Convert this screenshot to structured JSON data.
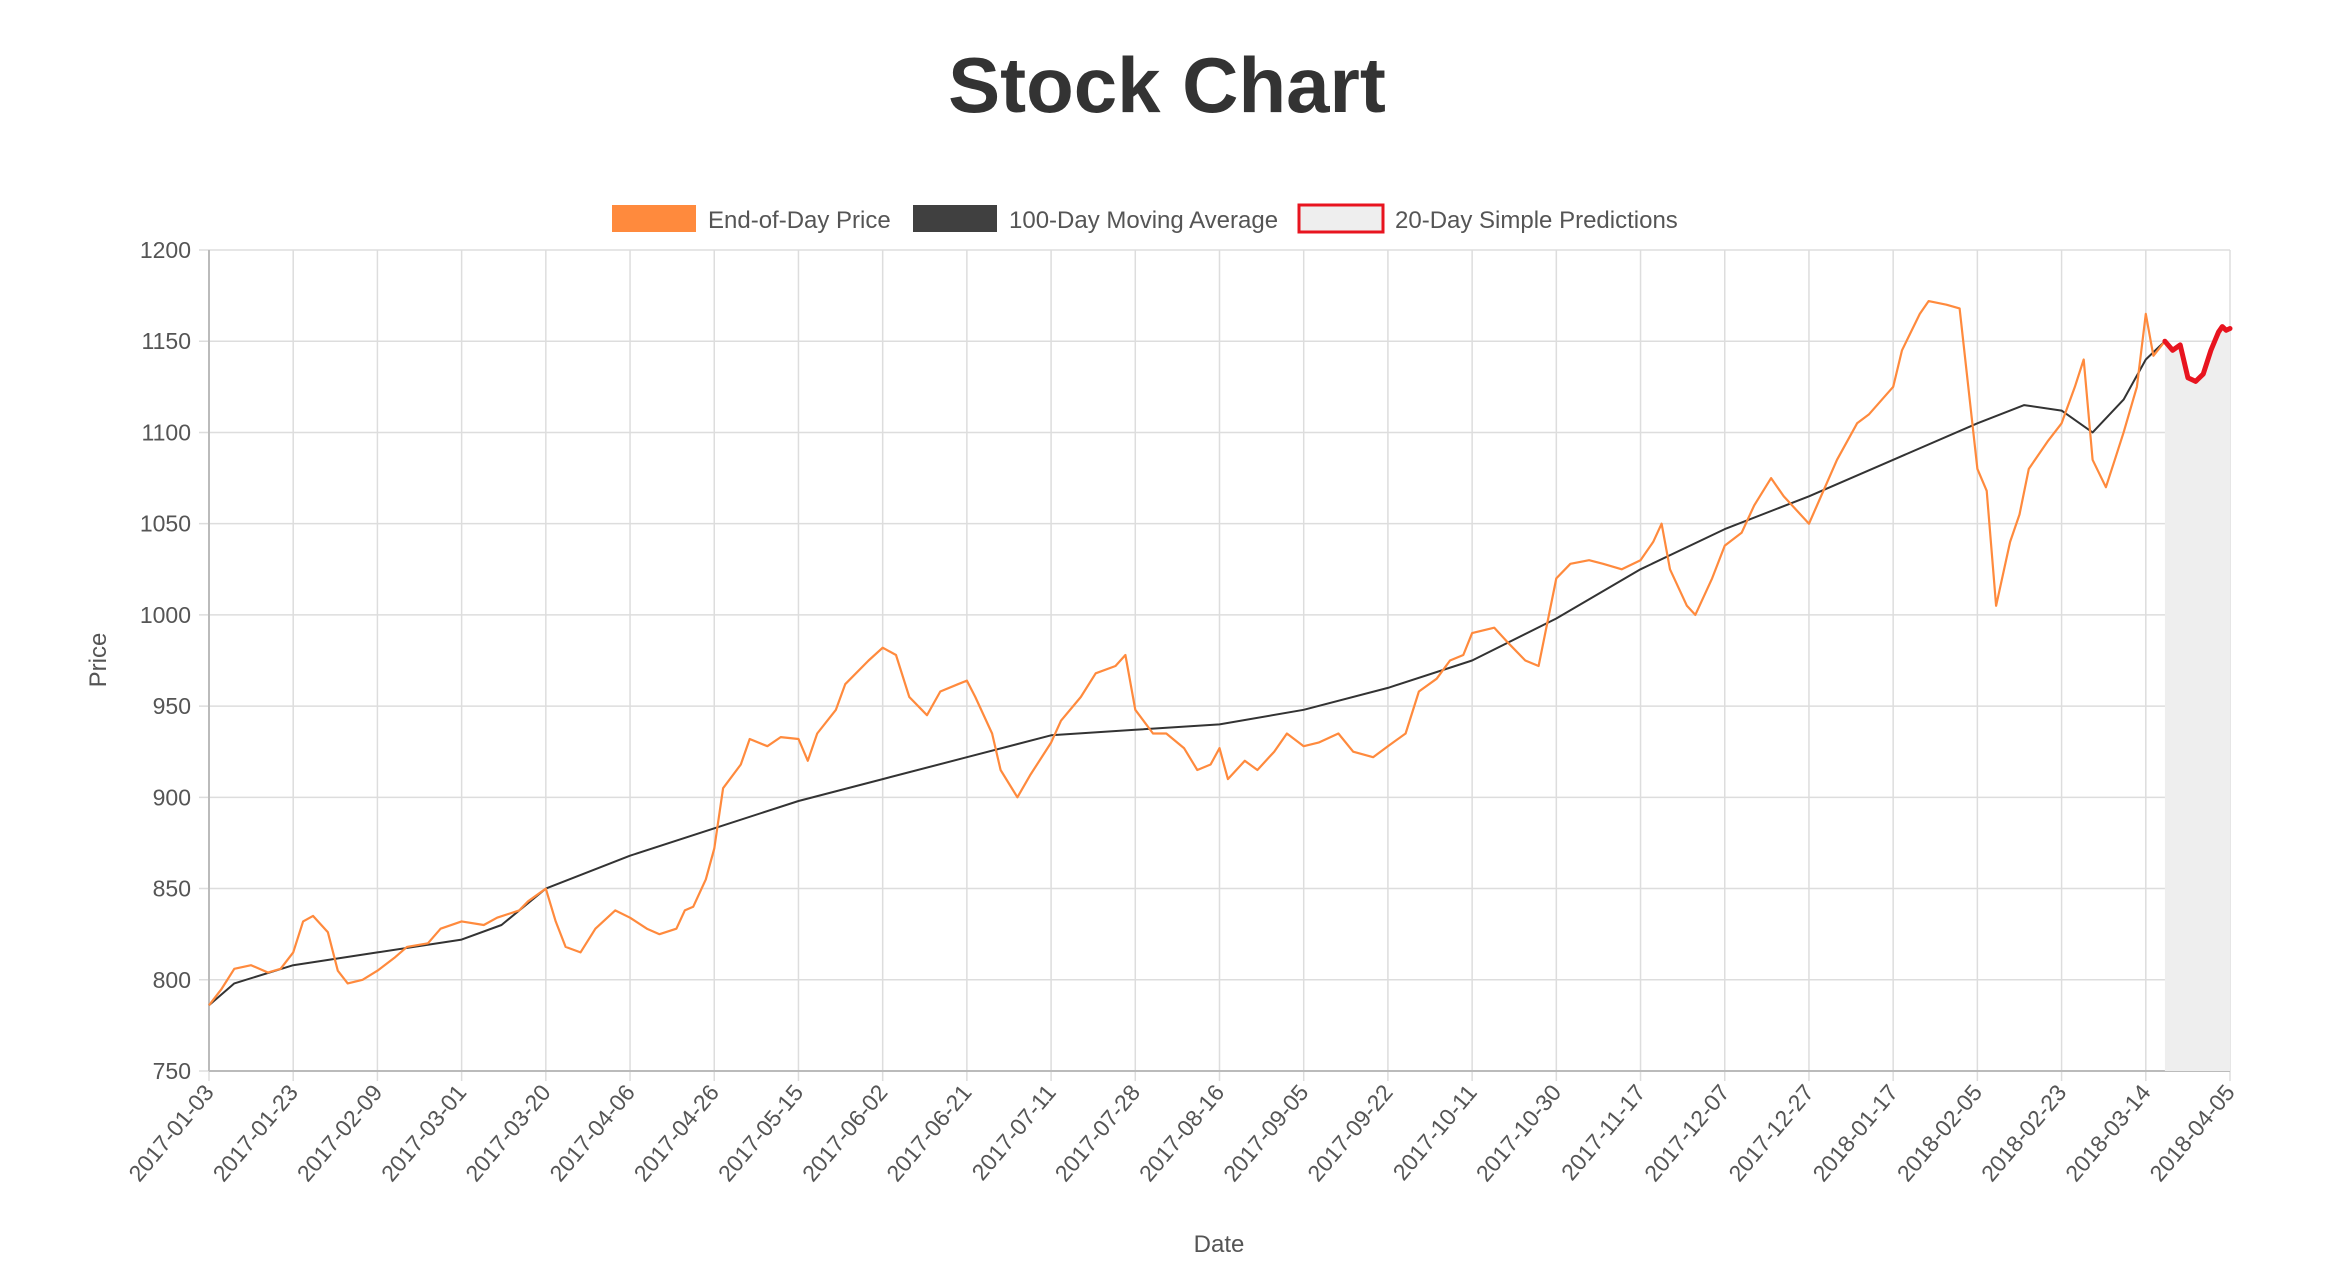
{
  "chart_data": {
    "type": "line",
    "title": "Stock Chart",
    "xlabel": "Date",
    "ylabel": "Price",
    "ylim": [
      750,
      1200
    ],
    "yticks": [
      750,
      800,
      850,
      900,
      950,
      1000,
      1050,
      1100,
      1150,
      1200
    ],
    "xticks": [
      "2017-01-03",
      "2017-01-23",
      "2017-02-09",
      "2017-03-01",
      "2017-03-20",
      "2017-04-06",
      "2017-04-26",
      "2017-05-15",
      "2017-06-02",
      "2017-06-21",
      "2017-07-11",
      "2017-07-28",
      "2017-08-16",
      "2017-09-05",
      "2017-09-22",
      "2017-10-11",
      "2017-10-30",
      "2017-11-17",
      "2017-12-07",
      "2017-12-27",
      "2018-01-17",
      "2018-02-05",
      "2018-02-23",
      "2018-03-14",
      "2018-04-05"
    ],
    "grid": true,
    "legend_position": "top",
    "colors": {
      "eod": "#ff8a3d",
      "ma": "#333333",
      "pred": "#e8141f",
      "pred_fill": "#eeeeee"
    },
    "series": [
      {
        "name": "End-of-Day Price",
        "points": [
          [
            "2017-01-03",
            786
          ],
          [
            "2017-01-06",
            795
          ],
          [
            "2017-01-09",
            806
          ],
          [
            "2017-01-13",
            808
          ],
          [
            "2017-01-17",
            804
          ],
          [
            "2017-01-20",
            806
          ],
          [
            "2017-01-23",
            815
          ],
          [
            "2017-01-25",
            832
          ],
          [
            "2017-01-27",
            835
          ],
          [
            "2017-01-30",
            826
          ],
          [
            "2017-02-01",
            805
          ],
          [
            "2017-02-03",
            798
          ],
          [
            "2017-02-06",
            800
          ],
          [
            "2017-02-09",
            805
          ],
          [
            "2017-02-13",
            812
          ],
          [
            "2017-02-16",
            818
          ],
          [
            "2017-02-21",
            820
          ],
          [
            "2017-02-24",
            828
          ],
          [
            "2017-03-01",
            832
          ],
          [
            "2017-03-06",
            830
          ],
          [
            "2017-03-09",
            834
          ],
          [
            "2017-03-14",
            838
          ],
          [
            "2017-03-16",
            843
          ],
          [
            "2017-03-20",
            850
          ],
          [
            "2017-03-22",
            832
          ],
          [
            "2017-03-24",
            818
          ],
          [
            "2017-03-27",
            815
          ],
          [
            "2017-03-30",
            828
          ],
          [
            "2017-04-03",
            838
          ],
          [
            "2017-04-06",
            834
          ],
          [
            "2017-04-10",
            828
          ],
          [
            "2017-04-13",
            825
          ],
          [
            "2017-04-17",
            828
          ],
          [
            "2017-04-19",
            838
          ],
          [
            "2017-04-21",
            840
          ],
          [
            "2017-04-24",
            855
          ],
          [
            "2017-04-26",
            872
          ],
          [
            "2017-04-28",
            905
          ],
          [
            "2017-05-02",
            918
          ],
          [
            "2017-05-04",
            932
          ],
          [
            "2017-05-08",
            928
          ],
          [
            "2017-05-11",
            933
          ],
          [
            "2017-05-15",
            932
          ],
          [
            "2017-05-17",
            920
          ],
          [
            "2017-05-19",
            935
          ],
          [
            "2017-05-23",
            948
          ],
          [
            "2017-05-25",
            962
          ],
          [
            "2017-05-30",
            975
          ],
          [
            "2017-06-02",
            982
          ],
          [
            "2017-06-05",
            978
          ],
          [
            "2017-06-08",
            955
          ],
          [
            "2017-06-12",
            945
          ],
          [
            "2017-06-15",
            958
          ],
          [
            "2017-06-19",
            962
          ],
          [
            "2017-06-21",
            964
          ],
          [
            "2017-06-23",
            955
          ],
          [
            "2017-06-27",
            935
          ],
          [
            "2017-06-29",
            915
          ],
          [
            "2017-07-03",
            900
          ],
          [
            "2017-07-06",
            912
          ],
          [
            "2017-07-11",
            930
          ],
          [
            "2017-07-13",
            942
          ],
          [
            "2017-07-17",
            955
          ],
          [
            "2017-07-20",
            968
          ],
          [
            "2017-07-24",
            972
          ],
          [
            "2017-07-26",
            978
          ],
          [
            "2017-07-28",
            948
          ],
          [
            "2017-08-01",
            935
          ],
          [
            "2017-08-04",
            935
          ],
          [
            "2017-08-08",
            927
          ],
          [
            "2017-08-11",
            915
          ],
          [
            "2017-08-14",
            918
          ],
          [
            "2017-08-16",
            927
          ],
          [
            "2017-08-18",
            910
          ],
          [
            "2017-08-22",
            920
          ],
          [
            "2017-08-25",
            915
          ],
          [
            "2017-08-29",
            925
          ],
          [
            "2017-09-01",
            935
          ],
          [
            "2017-09-05",
            928
          ],
          [
            "2017-09-08",
            930
          ],
          [
            "2017-09-12",
            935
          ],
          [
            "2017-09-15",
            925
          ],
          [
            "2017-09-19",
            922
          ],
          [
            "2017-09-22",
            928
          ],
          [
            "2017-09-26",
            935
          ],
          [
            "2017-09-29",
            958
          ],
          [
            "2017-10-03",
            965
          ],
          [
            "2017-10-06",
            975
          ],
          [
            "2017-10-09",
            978
          ],
          [
            "2017-10-11",
            990
          ],
          [
            "2017-10-16",
            993
          ],
          [
            "2017-10-19",
            985
          ],
          [
            "2017-10-23",
            975
          ],
          [
            "2017-10-26",
            972
          ],
          [
            "2017-10-30",
            1020
          ],
          [
            "2017-11-02",
            1028
          ],
          [
            "2017-11-06",
            1030
          ],
          [
            "2017-11-09",
            1028
          ],
          [
            "2017-11-13",
            1025
          ],
          [
            "2017-11-17",
            1030
          ],
          [
            "2017-11-20",
            1040
          ],
          [
            "2017-11-22",
            1050
          ],
          [
            "2017-11-24",
            1025
          ],
          [
            "2017-11-28",
            1005
          ],
          [
            "2017-11-30",
            1000
          ],
          [
            "2017-12-04",
            1020
          ],
          [
            "2017-12-07",
            1038
          ],
          [
            "2017-12-11",
            1045
          ],
          [
            "2017-12-14",
            1060
          ],
          [
            "2017-12-18",
            1075
          ],
          [
            "2017-12-21",
            1065
          ],
          [
            "2017-12-27",
            1050
          ],
          [
            "2017-12-29",
            1060
          ],
          [
            "2018-01-03",
            1085
          ],
          [
            "2018-01-08",
            1105
          ],
          [
            "2018-01-11",
            1110
          ],
          [
            "2018-01-17",
            1125
          ],
          [
            "2018-01-19",
            1145
          ],
          [
            "2018-01-23",
            1165
          ],
          [
            "2018-01-25",
            1172
          ],
          [
            "2018-01-29",
            1170
          ],
          [
            "2018-02-01",
            1168
          ],
          [
            "2018-02-05",
            1080
          ],
          [
            "2018-02-07",
            1068
          ],
          [
            "2018-02-09",
            1005
          ],
          [
            "2018-02-12",
            1040
          ],
          [
            "2018-02-14",
            1055
          ],
          [
            "2018-02-16",
            1080
          ],
          [
            "2018-02-20",
            1095
          ],
          [
            "2018-02-23",
            1105
          ],
          [
            "2018-02-26",
            1125
          ],
          [
            "2018-02-28",
            1140
          ],
          [
            "2018-03-02",
            1085
          ],
          [
            "2018-03-05",
            1070
          ],
          [
            "2018-03-07",
            1085
          ],
          [
            "2018-03-09",
            1100
          ],
          [
            "2018-03-12",
            1125
          ],
          [
            "2018-03-14",
            1165
          ],
          [
            "2018-03-16",
            1142
          ],
          [
            "2018-03-19",
            1150
          ]
        ]
      },
      {
        "name": "100-Day Moving Average",
        "points": [
          [
            "2017-01-03",
            786
          ],
          [
            "2017-01-09",
            798
          ],
          [
            "2017-01-23",
            808
          ],
          [
            "2017-02-09",
            815
          ],
          [
            "2017-03-01",
            822
          ],
          [
            "2017-03-10",
            830
          ],
          [
            "2017-03-20",
            850
          ],
          [
            "2017-04-06",
            868
          ],
          [
            "2017-04-26",
            883
          ],
          [
            "2017-05-15",
            898
          ],
          [
            "2017-06-02",
            910
          ],
          [
            "2017-06-21",
            922
          ],
          [
            "2017-07-11",
            934
          ],
          [
            "2017-07-28",
            937
          ],
          [
            "2017-08-16",
            940
          ],
          [
            "2017-09-05",
            948
          ],
          [
            "2017-09-22",
            960
          ],
          [
            "2017-10-11",
            975
          ],
          [
            "2017-10-30",
            998
          ],
          [
            "2017-11-17",
            1025
          ],
          [
            "2017-12-07",
            1047
          ],
          [
            "2017-12-27",
            1065
          ],
          [
            "2018-01-17",
            1085
          ],
          [
            "2018-02-05",
            1105
          ],
          [
            "2018-02-15",
            1115
          ],
          [
            "2018-02-23",
            1112
          ],
          [
            "2018-03-02",
            1100
          ],
          [
            "2018-03-09",
            1118
          ],
          [
            "2018-03-14",
            1140
          ],
          [
            "2018-03-19",
            1150
          ]
        ]
      },
      {
        "name": "20-Day Simple Predictions",
        "points": [
          [
            "2018-03-19",
            1150
          ],
          [
            "2018-03-21",
            1145
          ],
          [
            "2018-03-23",
            1148
          ],
          [
            "2018-03-25",
            1130
          ],
          [
            "2018-03-27",
            1128
          ],
          [
            "2018-03-29",
            1132
          ],
          [
            "2018-03-31",
            1145
          ],
          [
            "2018-04-01",
            1150
          ],
          [
            "2018-04-02",
            1155
          ],
          [
            "2018-04-03",
            1158
          ],
          [
            "2018-04-04",
            1156
          ],
          [
            "2018-04-05",
            1157
          ]
        ]
      }
    ]
  }
}
